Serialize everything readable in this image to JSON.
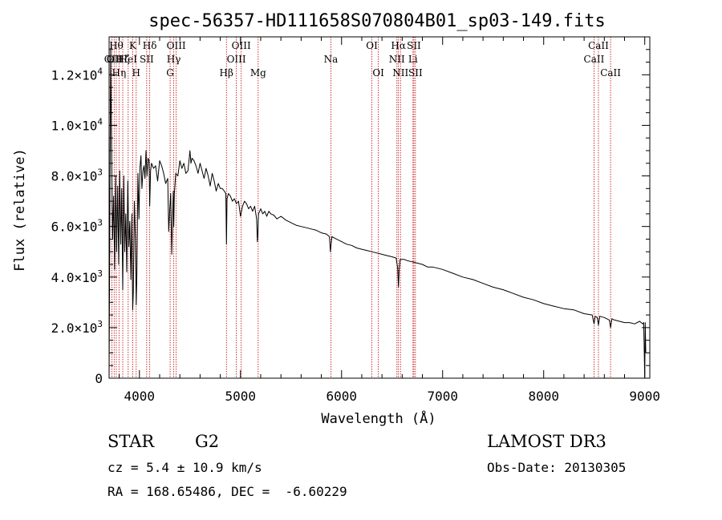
{
  "chart_data": {
    "type": "line",
    "title": "spec-56357-HD111658S070804B01_sp03-149.fits",
    "xlabel": "Wavelength (Å)",
    "ylabel": "Flux (relative)",
    "xlim": [
      3700,
      9050
    ],
    "ylim": [
      0,
      13500
    ],
    "xticks": [
      4000,
      5000,
      6000,
      7000,
      8000,
      9000
    ],
    "xtick_labels": [
      "4000",
      "5000",
      "6000",
      "7000",
      "8000",
      "9000"
    ],
    "yticks": [
      0,
      2000,
      4000,
      6000,
      8000,
      10000,
      12000
    ],
    "ytick_labels": [
      {
        "mant": "0",
        "exp": ""
      },
      {
        "mant": "2.0×10",
        "exp": "3"
      },
      {
        "mant": "4.0×10",
        "exp": "3"
      },
      {
        "mant": "6.0×10",
        "exp": "3"
      },
      {
        "mant": "8.0×10",
        "exp": "3"
      },
      {
        "mant": "1.0×10",
        "exp": "4"
      },
      {
        "mant": "1.2×10",
        "exp": "4"
      }
    ],
    "series": [
      {
        "name": "spectrum",
        "x": [
          3700,
          3715,
          3725,
          3735,
          3745,
          3755,
          3765,
          3775,
          3785,
          3795,
          3805,
          3815,
          3825,
          3835,
          3845,
          3855,
          3865,
          3875,
          3885,
          3895,
          3905,
          3915,
          3925,
          3933,
          3940,
          3950,
          3960,
          3968,
          3975,
          3985,
          3995,
          4005,
          4015,
          4025,
          4035,
          4045,
          4055,
          4065,
          4075,
          4085,
          4095,
          4102,
          4110,
          4120,
          4140,
          4160,
          4180,
          4200,
          4220,
          4240,
          4260,
          4280,
          4290,
          4300,
          4310,
          4320,
          4335,
          4340,
          4345,
          4360,
          4380,
          4400,
          4420,
          4440,
          4460,
          4480,
          4500,
          4510,
          4520,
          4540,
          4560,
          4580,
          4600,
          4620,
          4640,
          4660,
          4680,
          4700,
          4720,
          4740,
          4760,
          4780,
          4800,
          4820,
          4840,
          4855,
          4861,
          4867,
          4880,
          4900,
          4920,
          4940,
          4960,
          4980,
          5000,
          5020,
          5040,
          5060,
          5080,
          5100,
          5120,
          5140,
          5160,
          5167,
          5172,
          5178,
          5190,
          5200,
          5220,
          5240,
          5260,
          5280,
          5300,
          5330,
          5360,
          5400,
          5450,
          5500,
          5550,
          5600,
          5650,
          5700,
          5750,
          5800,
          5850,
          5880,
          5890,
          5896,
          5905,
          5950,
          6000,
          6050,
          6100,
          6150,
          6200,
          6250,
          6300,
          6350,
          6400,
          6450,
          6500,
          6540,
          6555,
          6563,
          6570,
          6580,
          6620,
          6650,
          6700,
          6750,
          6800,
          6850,
          6900,
          6950,
          7000,
          7100,
          7200,
          7300,
          7400,
          7500,
          7600,
          7700,
          7800,
          7900,
          8000,
          8100,
          8200,
          8300,
          8400,
          8480,
          8498,
          8510,
          8530,
          8542,
          8555,
          8600,
          8650,
          8662,
          8675,
          8700,
          8750,
          8800,
          8850,
          8900,
          8950,
          8980,
          8990,
          9000,
          9005,
          9010
        ],
        "y": [
          0,
          13000,
          9000,
          5500,
          7200,
          4300,
          8000,
          5000,
          7600,
          4500,
          8200,
          5300,
          7500,
          3500,
          8000,
          5000,
          6500,
          4200,
          7800,
          5200,
          6200,
          3900,
          6500,
          2700,
          3400,
          7000,
          5500,
          2900,
          4100,
          8100,
          6300,
          8300,
          8800,
          7500,
          8200,
          8400,
          7900,
          9000,
          8000,
          8700,
          8600,
          6800,
          8200,
          8500,
          8300,
          8400,
          7800,
          8600,
          8400,
          8100,
          7700,
          7900,
          5800,
          6700,
          7300,
          4900,
          7400,
          6000,
          7300,
          8100,
          8000,
          8600,
          8300,
          8500,
          8100,
          8200,
          9000,
          8500,
          8700,
          8600,
          8400,
          8100,
          8500,
          8200,
          7900,
          8300,
          8000,
          7600,
          8100,
          7800,
          7400,
          7700,
          7500,
          7500,
          7400,
          7300,
          5300,
          7100,
          7300,
          7200,
          7000,
          7100,
          6900,
          7000,
          6400,
          6800,
          7000,
          6900,
          6700,
          6800,
          6600,
          6800,
          6300,
          5400,
          5700,
          6500,
          6600,
          6700,
          6500,
          6600,
          6400,
          6600,
          6500,
          6450,
          6300,
          6400,
          6250,
          6150,
          6050,
          6000,
          5950,
          5900,
          5850,
          5750,
          5700,
          5600,
          5000,
          5300,
          5600,
          5500,
          5400,
          5300,
          5250,
          5150,
          5100,
          5050,
          5000,
          4950,
          4900,
          4850,
          4800,
          4750,
          4350,
          3600,
          4300,
          4700,
          4700,
          4650,
          4600,
          4550,
          4500,
          4400,
          4400,
          4350,
          4300,
          4150,
          4000,
          3900,
          3750,
          3600,
          3500,
          3350,
          3200,
          3100,
          2950,
          2850,
          2750,
          2700,
          2550,
          2500,
          2150,
          2450,
          2400,
          2100,
          2450,
          2400,
          2300,
          2000,
          2350,
          2300,
          2250,
          2200,
          2200,
          2150,
          2250,
          2150,
          2200,
          0,
          2200,
          1000
        ]
      }
    ],
    "line_marks": [
      {
        "x": 3727,
        "label": "OII",
        "row": 2
      },
      {
        "x": 3750,
        "label": "OII",
        "row": 2
      },
      {
        "x": 3771,
        "label": "Hθ",
        "row": 1
      },
      {
        "x": 3798,
        "label": "Hη",
        "row": 3
      },
      {
        "x": 3835,
        "label": "Hζ",
        "row": 2
      },
      {
        "x": 3889,
        "label": "HeI",
        "row": 2
      },
      {
        "x": 3934,
        "label": "K",
        "row": 1
      },
      {
        "x": 3968,
        "label": "H",
        "row": 3
      },
      {
        "x": 4072,
        "label": "SII",
        "row": 2
      },
      {
        "x": 4102,
        "label": "Hδ",
        "row": 1
      },
      {
        "x": 4304,
        "label": "G",
        "row": 3
      },
      {
        "x": 4340,
        "label": "Hγ",
        "row": 2
      },
      {
        "x": 4364,
        "label": "OIII",
        "row": 1
      },
      {
        "x": 4861,
        "label": "Hβ",
        "row": 3
      },
      {
        "x": 4959,
        "label": "OIII",
        "row": 2
      },
      {
        "x": 5007,
        "label": "OIII",
        "row": 1
      },
      {
        "x": 5175,
        "label": "Mg",
        "row": 3
      },
      {
        "x": 5894,
        "label": "Na",
        "row": 2
      },
      {
        "x": 6300,
        "label": "OI",
        "row": 1
      },
      {
        "x": 6364,
        "label": "OI",
        "row": 3
      },
      {
        "x": 6548,
        "label": "NII",
        "row": 2
      },
      {
        "x": 6563,
        "label": "Hα",
        "row": 1
      },
      {
        "x": 6583,
        "label": "NII",
        "row": 3
      },
      {
        "x": 6707,
        "label": "Li",
        "row": 2
      },
      {
        "x": 6716,
        "label": "SII",
        "row": 1
      },
      {
        "x": 6731,
        "label": "SII",
        "row": 3
      },
      {
        "x": 8498,
        "label": "CaII",
        "row": 2
      },
      {
        "x": 8542,
        "label": "CaII",
        "row": 1
      },
      {
        "x": 8662,
        "label": "CaII",
        "row": 3
      }
    ]
  },
  "info": {
    "object_class": "STAR",
    "subclass": "G2",
    "survey": "LAMOST DR3",
    "redshift": "cz = 5.4 ± 10.9 km/s",
    "obs_date": "Obs-Date: 20130305",
    "coords": "RA = 168.65486, DEC =  -6.60229"
  },
  "colors": {
    "spectrum": "#000000",
    "line_marks": "#c00000",
    "axes": "#000000",
    "background": "#ffffff"
  }
}
